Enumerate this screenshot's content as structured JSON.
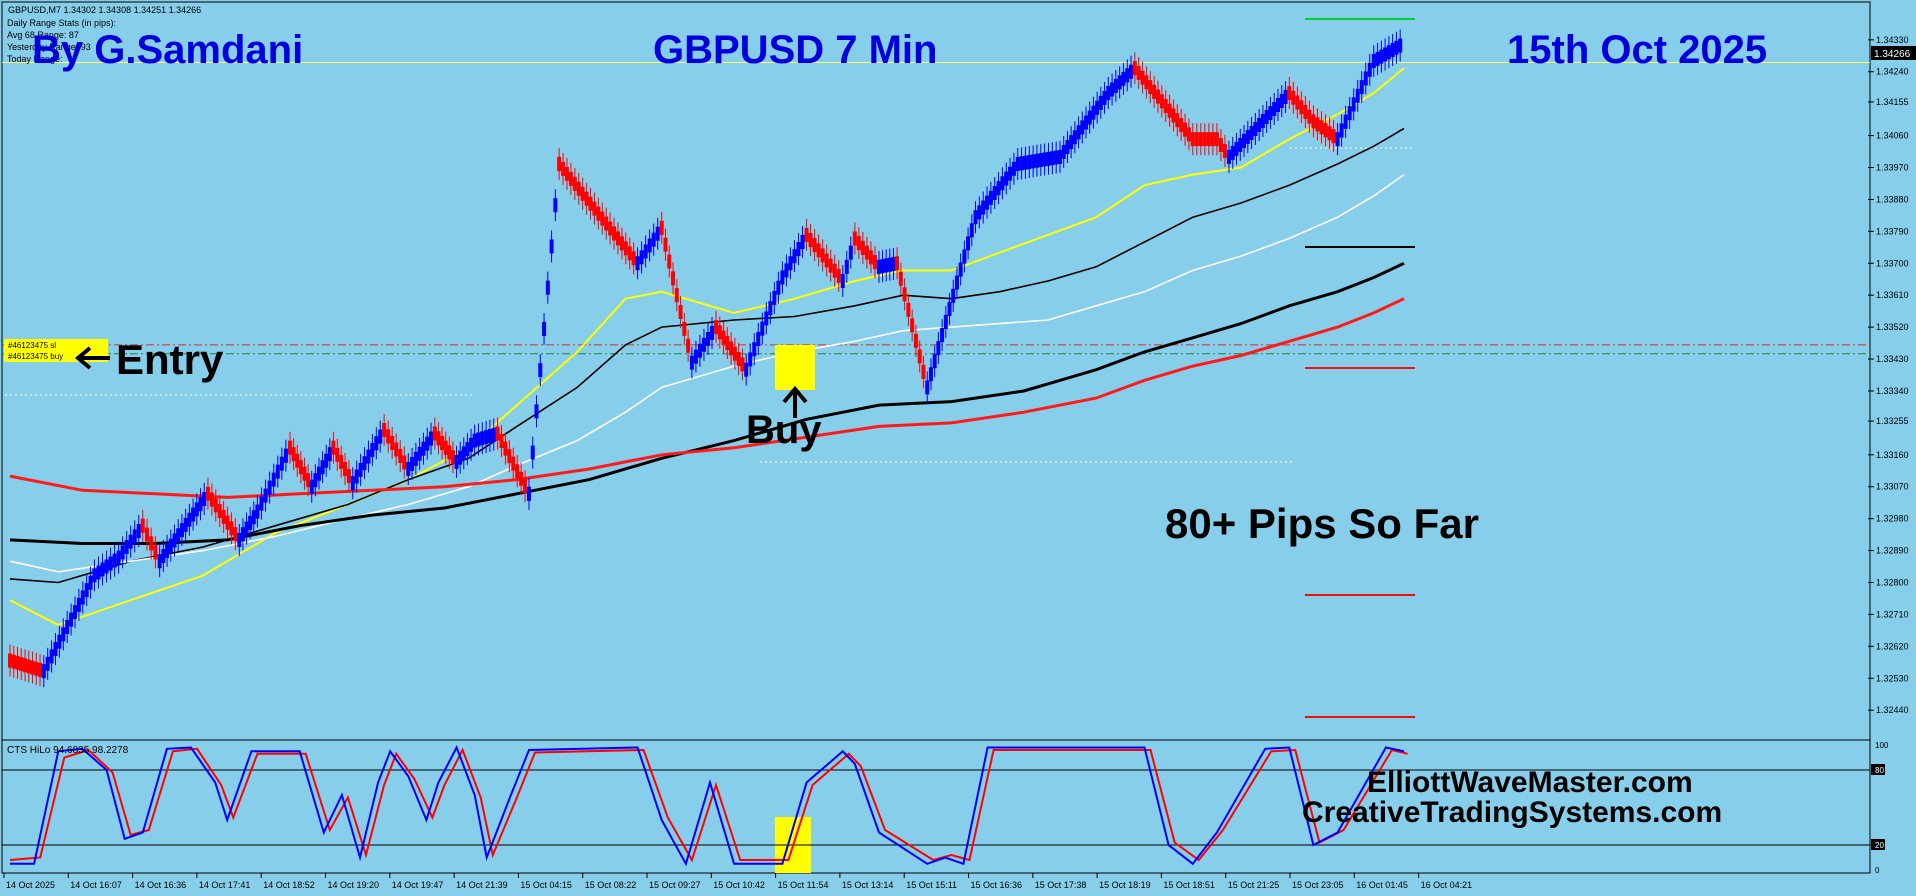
{
  "header": {
    "symbol_line": "GBPUSD,M7  1.34302 1.34308 1.34251 1.34266",
    "stats_lines": [
      "Daily Range Stats (in pips):",
      "Avg 68   Range: 87",
      "Yesterday Range: 93",
      "Today Range:"
    ]
  },
  "overlay": {
    "author": "By G.Samdani",
    "symbol_title": "GBPUSD 7 Min",
    "date_title": "15th Oct 2025",
    "entry_label": "Entry",
    "buy_label": "Buy",
    "pips_label": "80+ Pips So Far",
    "site1": "ElliottWaveMaster.com",
    "site2": "CreativeTradingSystems.com"
  },
  "order_tags": [
    "#46123475 sl",
    "#46123475 buy"
  ],
  "indicator": {
    "label": "CTS HiLo 94.6835 98.2278",
    "levels": [
      "100",
      "80",
      "20",
      "0"
    ]
  },
  "current_price": "1.34266",
  "colors": {
    "background": "#87ceeb",
    "bull": "#0000ff",
    "bear": "#ff0000",
    "title_blue": "#0000dd",
    "highlight": "#ffff00"
  },
  "chart_data": {
    "type": "line",
    "price_axis": [
      "1.34330",
      "1.34240",
      "1.34155",
      "1.34060",
      "1.33970",
      "1.33880",
      "1.33790",
      "1.33700",
      "1.33610",
      "1.33520",
      "1.33430",
      "1.33340",
      "1.33255",
      "1.33160",
      "1.33070",
      "1.32980",
      "1.32890",
      "1.32800",
      "1.32710",
      "1.32620",
      "1.32530",
      "1.32440"
    ],
    "ylim": [
      1.3237,
      1.344
    ],
    "time_axis": [
      "14 Oct 2025",
      "14 Oct 16:07",
      "14 Oct 16:36",
      "14 Oct 17:41",
      "14 Oct 18:52",
      "14 Oct 19:20",
      "14 Oct 19:47",
      "14 Oct 21:39",
      "15 Oct 04:15",
      "15 Oct 08:22",
      "15 Oct 09:27",
      "15 Oct 10:42",
      "15 Oct 11:54",
      "15 Oct 13:14",
      "15 Oct 15:11",
      "15 Oct 16:36",
      "15 Oct 17:38",
      "15 Oct 18:19",
      "15 Oct 18:51",
      "15 Oct 21:25",
      "15 Oct 23:05",
      "16 Oct 01:45",
      "16 Oct 04:21"
    ],
    "renko_pivots": [
      [
        0,
        1.3258
      ],
      [
        28,
        1.3255
      ],
      [
        70,
        1.3282
      ],
      [
        90,
        1.3287
      ],
      [
        110,
        1.3296
      ],
      [
        124,
        1.3286
      ],
      [
        164,
        1.3305
      ],
      [
        190,
        1.3292
      ],
      [
        205,
        1.33
      ],
      [
        232,
        1.3318
      ],
      [
        250,
        1.3307
      ],
      [
        268,
        1.3318
      ],
      [
        284,
        1.3308
      ],
      [
        310,
        1.3323
      ],
      [
        330,
        1.3312
      ],
      [
        352,
        1.3322
      ],
      [
        370,
        1.3314
      ],
      [
        385,
        1.332
      ],
      [
        404,
        1.3322
      ],
      [
        430,
        1.3305
      ],
      [
        455,
        1.3398
      ],
      [
        520,
        1.337
      ],
      [
        540,
        1.338
      ],
      [
        565,
        1.3342
      ],
      [
        585,
        1.3352
      ],
      [
        610,
        1.334
      ],
      [
        640,
        1.3366
      ],
      [
        660,
        1.3378
      ],
      [
        690,
        1.3365
      ],
      [
        700,
        1.3377
      ],
      [
        720,
        1.3369
      ],
      [
        735,
        1.337
      ],
      [
        760,
        1.3335
      ],
      [
        800,
        1.3383
      ],
      [
        835,
        1.3398
      ],
      [
        870,
        1.34
      ],
      [
        910,
        1.3418
      ],
      [
        932,
        1.3425
      ],
      [
        980,
        1.3405
      ],
      [
        1000,
        1.3405
      ],
      [
        1010,
        1.34
      ],
      [
        1060,
        1.3418
      ],
      [
        1080,
        1.341
      ],
      [
        1100,
        1.3405
      ],
      [
        1130,
        1.3427
      ],
      [
        1155,
        1.3432
      ]
    ],
    "series": [
      {
        "color": "#ffff00",
        "width": 2,
        "points": [
          [
            0,
            1.3275
          ],
          [
            40,
            1.3268
          ],
          [
            100,
            1.3275
          ],
          [
            160,
            1.3282
          ],
          [
            220,
            1.3294
          ],
          [
            280,
            1.3302
          ],
          [
            330,
            1.3309
          ],
          [
            380,
            1.3318
          ],
          [
            420,
            1.333
          ],
          [
            470,
            1.3345
          ],
          [
            510,
            1.336
          ],
          [
            540,
            1.3362
          ],
          [
            600,
            1.3356
          ],
          [
            650,
            1.336
          ],
          [
            700,
            1.3365
          ],
          [
            740,
            1.3368
          ],
          [
            780,
            1.3368
          ],
          [
            820,
            1.3373
          ],
          [
            860,
            1.3378
          ],
          [
            900,
            1.3383
          ],
          [
            940,
            1.3392
          ],
          [
            980,
            1.3395
          ],
          [
            1020,
            1.3397
          ],
          [
            1060,
            1.3405
          ],
          [
            1100,
            1.3412
          ],
          [
            1130,
            1.3418
          ],
          [
            1155,
            1.3425
          ]
        ]
      },
      {
        "color": "#000000",
        "width": 1.6,
        "points": [
          [
            0,
            1.3281
          ],
          [
            40,
            1.328
          ],
          [
            100,
            1.3286
          ],
          [
            160,
            1.329
          ],
          [
            220,
            1.3296
          ],
          [
            280,
            1.3302
          ],
          [
            330,
            1.3309
          ],
          [
            380,
            1.3315
          ],
          [
            420,
            1.3324
          ],
          [
            470,
            1.3335
          ],
          [
            510,
            1.3347
          ],
          [
            540,
            1.3352
          ],
          [
            600,
            1.3354
          ],
          [
            650,
            1.3355
          ],
          [
            700,
            1.3358
          ],
          [
            740,
            1.3361
          ],
          [
            780,
            1.336
          ],
          [
            820,
            1.3362
          ],
          [
            860,
            1.3365
          ],
          [
            900,
            1.3369
          ],
          [
            940,
            1.3376
          ],
          [
            980,
            1.3383
          ],
          [
            1020,
            1.3387
          ],
          [
            1060,
            1.3392
          ],
          [
            1100,
            1.3398
          ],
          [
            1130,
            1.3403
          ],
          [
            1155,
            1.3408
          ]
        ]
      },
      {
        "color": "#ffffff",
        "width": 1.6,
        "points": [
          [
            0,
            1.3286
          ],
          [
            40,
            1.3283
          ],
          [
            100,
            1.3286
          ],
          [
            160,
            1.3289
          ],
          [
            220,
            1.3293
          ],
          [
            280,
            1.3298
          ],
          [
            330,
            1.3302
          ],
          [
            380,
            1.3307
          ],
          [
            420,
            1.3313
          ],
          [
            470,
            1.332
          ],
          [
            510,
            1.3328
          ],
          [
            540,
            1.3335
          ],
          [
            600,
            1.3341
          ],
          [
            650,
            1.3345
          ],
          [
            700,
            1.3348
          ],
          [
            740,
            1.3351
          ],
          [
            780,
            1.3352
          ],
          [
            820,
            1.3353
          ],
          [
            860,
            1.3354
          ],
          [
            900,
            1.3358
          ],
          [
            940,
            1.3362
          ],
          [
            980,
            1.3368
          ],
          [
            1020,
            1.3372
          ],
          [
            1060,
            1.3377
          ],
          [
            1100,
            1.3383
          ],
          [
            1130,
            1.3389
          ],
          [
            1155,
            1.3395
          ]
        ]
      },
      {
        "color": "#000000",
        "width": 3,
        "points": [
          [
            0,
            1.3292
          ],
          [
            60,
            1.3291
          ],
          [
            120,
            1.3291
          ],
          [
            180,
            1.3292
          ],
          [
            240,
            1.3296
          ],
          [
            300,
            1.3299
          ],
          [
            360,
            1.3301
          ],
          [
            420,
            1.3305
          ],
          [
            480,
            1.3309
          ],
          [
            540,
            1.3315
          ],
          [
            600,
            1.332
          ],
          [
            660,
            1.3326
          ],
          [
            720,
            1.333
          ],
          [
            780,
            1.3331
          ],
          [
            840,
            1.3334
          ],
          [
            900,
            1.334
          ],
          [
            940,
            1.3345
          ],
          [
            980,
            1.3349
          ],
          [
            1020,
            1.3353
          ],
          [
            1060,
            1.3358
          ],
          [
            1100,
            1.3362
          ],
          [
            1130,
            1.3366
          ],
          [
            1155,
            1.337
          ]
        ]
      },
      {
        "color": "#ff1a1a",
        "width": 3,
        "points": [
          [
            0,
            1.331
          ],
          [
            60,
            1.3306
          ],
          [
            120,
            1.3305
          ],
          [
            180,
            1.3304
          ],
          [
            240,
            1.3305
          ],
          [
            300,
            1.3306
          ],
          [
            360,
            1.3307
          ],
          [
            420,
            1.3309
          ],
          [
            480,
            1.3312
          ],
          [
            540,
            1.3316
          ],
          [
            600,
            1.3318
          ],
          [
            660,
            1.3321
          ],
          [
            720,
            1.3324
          ],
          [
            780,
            1.3325
          ],
          [
            840,
            1.3328
          ],
          [
            900,
            1.3332
          ],
          [
            940,
            1.3337
          ],
          [
            980,
            1.3341
          ],
          [
            1020,
            1.3344
          ],
          [
            1060,
            1.3348
          ],
          [
            1100,
            1.3352
          ],
          [
            1130,
            1.3356
          ],
          [
            1155,
            1.336
          ]
        ]
      }
    ],
    "horizontal_lines": [
      {
        "price": 1.34266,
        "color": "#ffff66",
        "style": "solid"
      },
      {
        "price": 1.3347,
        "color": "#cc3333",
        "style": "dashdot"
      },
      {
        "price": 1.33445,
        "color": "#208040",
        "style": "dashdot"
      }
    ],
    "oscillator": {
      "ylim": [
        0,
        100
      ],
      "blue": [
        [
          0,
          5
        ],
        [
          20,
          5
        ],
        [
          40,
          95
        ],
        [
          60,
          97
        ],
        [
          80,
          80
        ],
        [
          95,
          25
        ],
        [
          110,
          30
        ],
        [
          130,
          97
        ],
        [
          150,
          98
        ],
        [
          170,
          70
        ],
        [
          180,
          40
        ],
        [
          200,
          95
        ],
        [
          240,
          95
        ],
        [
          260,
          30
        ],
        [
          275,
          60
        ],
        [
          290,
          10
        ],
        [
          305,
          70
        ],
        [
          315,
          95
        ],
        [
          330,
          75
        ],
        [
          345,
          40
        ],
        [
          355,
          70
        ],
        [
          370,
          98
        ],
        [
          385,
          60
        ],
        [
          395,
          10
        ],
        [
          415,
          60
        ],
        [
          430,
          96
        ],
        [
          520,
          98
        ],
        [
          540,
          40
        ],
        [
          560,
          5
        ],
        [
          580,
          70
        ],
        [
          600,
          5
        ],
        [
          640,
          5
        ],
        [
          660,
          70
        ],
        [
          690,
          95
        ],
        [
          700,
          85
        ],
        [
          720,
          30
        ],
        [
          760,
          5
        ],
        [
          775,
          10
        ],
        [
          790,
          5
        ],
        [
          810,
          98
        ],
        [
          840,
          98
        ],
        [
          900,
          98
        ],
        [
          940,
          98
        ],
        [
          960,
          20
        ],
        [
          980,
          5
        ],
        [
          1000,
          30
        ],
        [
          1040,
          97
        ],
        [
          1060,
          98
        ],
        [
          1080,
          20
        ],
        [
          1100,
          30
        ],
        [
          1140,
          98
        ],
        [
          1155,
          95
        ]
      ],
      "red": [
        [
          0,
          8
        ],
        [
          25,
          10
        ],
        [
          45,
          90
        ],
        [
          65,
          96
        ],
        [
          85,
          78
        ],
        [
          100,
          28
        ],
        [
          115,
          32
        ],
        [
          135,
          95
        ],
        [
          155,
          97
        ],
        [
          175,
          68
        ],
        [
          185,
          42
        ],
        [
          205,
          93
        ],
        [
          245,
          93
        ],
        [
          265,
          32
        ],
        [
          280,
          58
        ],
        [
          295,
          12
        ],
        [
          310,
          68
        ],
        [
          320,
          93
        ],
        [
          335,
          73
        ],
        [
          350,
          42
        ],
        [
          360,
          68
        ],
        [
          375,
          96
        ],
        [
          390,
          58
        ],
        [
          400,
          12
        ],
        [
          420,
          58
        ],
        [
          435,
          94
        ],
        [
          525,
          96
        ],
        [
          545,
          42
        ],
        [
          565,
          8
        ],
        [
          585,
          68
        ],
        [
          605,
          8
        ],
        [
          645,
          8
        ],
        [
          665,
          68
        ],
        [
          695,
          93
        ],
        [
          705,
          83
        ],
        [
          725,
          32
        ],
        [
          765,
          8
        ],
        [
          780,
          12
        ],
        [
          795,
          8
        ],
        [
          815,
          96
        ],
        [
          845,
          96
        ],
        [
          905,
          96
        ],
        [
          945,
          96
        ],
        [
          965,
          22
        ],
        [
          985,
          8
        ],
        [
          1005,
          32
        ],
        [
          1045,
          95
        ],
        [
          1065,
          96
        ],
        [
          1085,
          22
        ],
        [
          1105,
          32
        ],
        [
          1145,
          96
        ],
        [
          1158,
          93
        ]
      ]
    }
  }
}
